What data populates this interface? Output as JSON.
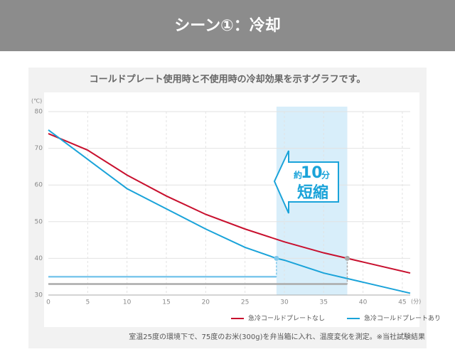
{
  "header": {
    "title": "シーン①：冷却"
  },
  "chart_data": {
    "type": "line",
    "title": "コールドプレート使用時と不使用時の冷却効果を示すグラフです。",
    "y_unit": "(℃)",
    "x_unit": "(分)",
    "xlim": [
      0,
      46
    ],
    "xticks": [
      0,
      5,
      10,
      15,
      20,
      25,
      30,
      35,
      40,
      45
    ],
    "ylim": [
      30,
      80
    ],
    "yticks": [
      30,
      40,
      50,
      60,
      70,
      80
    ],
    "grid": true,
    "series": [
      {
        "name": "急冷コールドプレートなし",
        "color": "#c8102e",
        "x": [
          0,
          5,
          10,
          15,
          20,
          25,
          30,
          35,
          38,
          40,
          46
        ],
        "values": [
          74,
          69.5,
          62.7,
          57,
          52,
          48,
          44.5,
          41.5,
          40,
          39,
          36
        ]
      },
      {
        "name": "急冷コールドプレートあり",
        "color": "#1aa3d9",
        "x": [
          0,
          5,
          10,
          15,
          20,
          25,
          29,
          30,
          35,
          40,
          46
        ],
        "values": [
          75,
          67,
          59,
          53.5,
          48,
          43,
          40,
          39.5,
          36,
          33.5,
          30.5
        ]
      }
    ],
    "reference_lines": [
      {
        "value": 35,
        "to": 29,
        "color": "#7ec8ec"
      },
      {
        "value": 33,
        "to": 38,
        "color": "#aaaaaa"
      }
    ],
    "highlight": {
      "from": 29,
      "to": 38,
      "level": 40,
      "color": "#d8eefa"
    },
    "annotation": {
      "prefix": "約",
      "number": "10",
      "unit": "分",
      "text": "短縮"
    },
    "legend": "bottom-right",
    "footnote": "室温25度の環境下で、75度のお米(300g)を弁当箱に入れ、温度変化を測定。※当社試験結果"
  }
}
